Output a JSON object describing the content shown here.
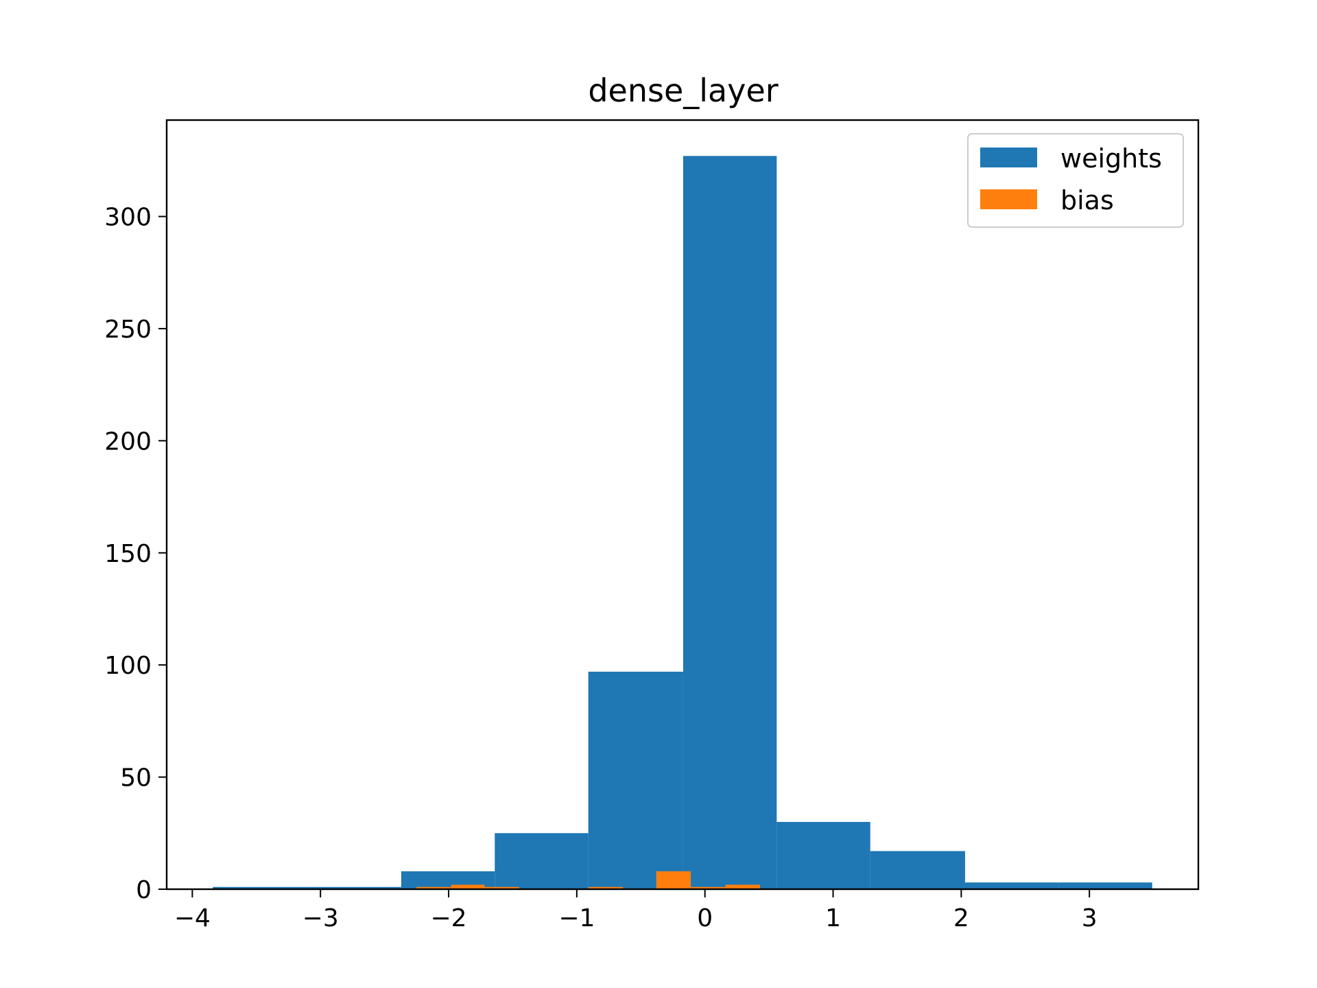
{
  "chart_data": {
    "type": "bar",
    "title": "dense_layer",
    "xlabel": "",
    "ylabel": "",
    "xlim": [
      -4.2,
      3.85
    ],
    "ylim": [
      0,
      343
    ],
    "xticks": [
      -4,
      -3,
      -2,
      -1,
      0,
      1,
      2,
      3
    ],
    "xtick_labels": [
      "−4",
      "−3",
      "−2",
      "−1",
      "0",
      "1",
      "2",
      "3"
    ],
    "yticks": [
      0,
      50,
      100,
      150,
      200,
      250,
      300
    ],
    "ytick_labels": [
      "0",
      "50",
      "100",
      "150",
      "200",
      "250",
      "300"
    ],
    "grid": false,
    "legend": {
      "position": "top-right",
      "entries": [
        "weights",
        "bias"
      ]
    },
    "series": [
      {
        "name": "weights",
        "color": "#1f77b4",
        "bin_edges": [
          -3.84,
          -3.11,
          -2.37,
          -1.64,
          -0.91,
          -0.17,
          0.56,
          1.29,
          2.03,
          2.76,
          3.49
        ],
        "counts": [
          1,
          1,
          8,
          25,
          97,
          327,
          30,
          17,
          3,
          3
        ]
      },
      {
        "name": "bias",
        "color": "#ff7f0e",
        "bin_edges": [
          -2.25,
          -1.98,
          -1.72,
          -1.45,
          -1.18,
          -0.91,
          -0.64,
          -0.38,
          -0.11,
          0.16,
          0.43
        ],
        "counts": [
          1,
          2,
          1,
          0,
          0,
          1,
          0,
          8,
          1,
          2
        ]
      }
    ]
  }
}
